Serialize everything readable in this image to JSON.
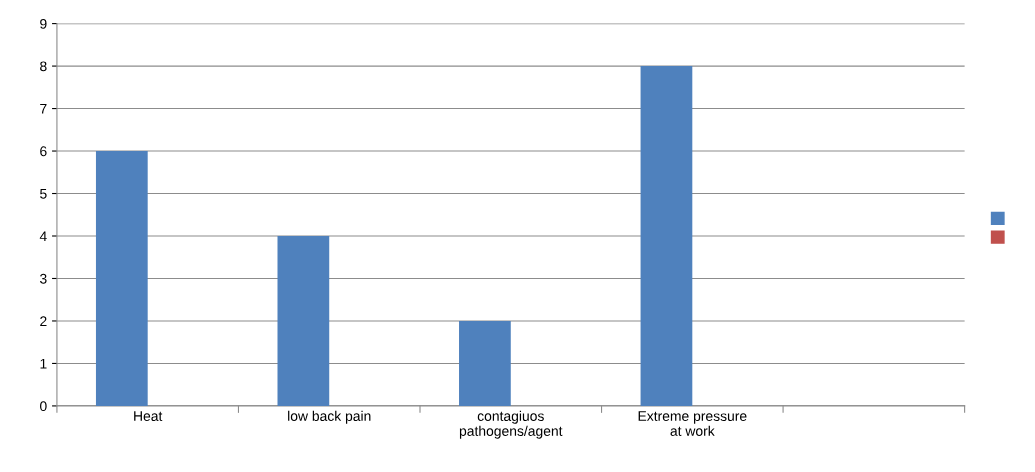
{
  "chart_data": {
    "type": "bar",
    "categories": [
      "Heat",
      "low back pain",
      "contagiuos\npathogens/agent",
      "Extreme pressure\nat work",
      null
    ],
    "series": [
      {
        "color": "#4f81bd",
        "values": [
          6,
          4,
          2,
          8,
          null
        ]
      },
      {
        "color": "#c0504d",
        "values": [
          null,
          null,
          null,
          null,
          null
        ]
      }
    ],
    "ylim": [
      0,
      9
    ],
    "yticks": [
      0,
      1,
      2,
      3,
      4,
      5,
      6,
      7,
      8,
      9
    ],
    "grid": "y"
  }
}
